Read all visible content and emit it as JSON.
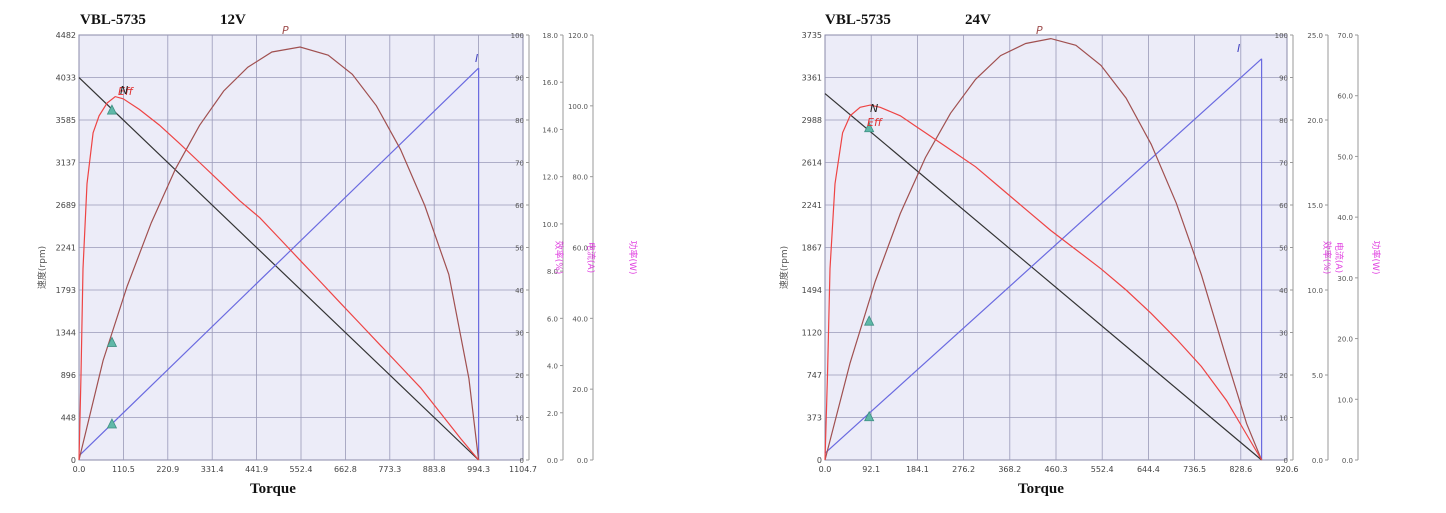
{
  "chart_data": [
    {
      "type": "line",
      "title": "VBL-5735",
      "subtitle": "12V",
      "xlabel": "Torque",
      "ylabel": "速度(rpm)",
      "right_labels": [
        "效率(%)",
        "电流(A)",
        "功率(W)"
      ],
      "xlim": [
        0,
        1104.7
      ],
      "xticks": [
        "0.0",
        "110.5",
        "220.9",
        "331.4",
        "441.9",
        "552.4",
        "662.8",
        "773.3",
        "883.8",
        "994.3",
        "1104.7"
      ],
      "ylim": [
        0,
        4482
      ],
      "yticks": [
        "0",
        "448",
        "896",
        "1344",
        "1793",
        "2241",
        "2689",
        "3137",
        "3585",
        "4033",
        "4482"
      ],
      "y2lim": [
        0,
        100
      ],
      "y2ticks": [
        "0",
        "10",
        "20",
        "30",
        "40",
        "50",
        "60",
        "70",
        "80",
        "90",
        "100"
      ],
      "y3lim": [
        0,
        18
      ],
      "y3ticks": [
        "0.0",
        "2.0",
        "4.0",
        "6.0",
        "8.0",
        "10.0",
        "12.0",
        "14.0",
        "16.0",
        "18.0"
      ],
      "y4lim": [
        0,
        120
      ],
      "y4ticks": [
        "0.0",
        "20.0",
        "40.0",
        "60.0",
        "80.0",
        "100.0",
        "120.0"
      ],
      "grid": true,
      "colors": {
        "speed": "#333333",
        "eff": "#ee4444",
        "power": "#a05050",
        "current": "#6a6ae0",
        "marker": "#5fb8a8"
      },
      "series": [
        {
          "name": "N",
          "axis": "speed",
          "x": [
            0,
            994.3
          ],
          "y": [
            4033,
            0
          ]
        },
        {
          "name": "I",
          "axis": "current",
          "x": [
            0,
            994.3
          ],
          "y": [
            0.18,
            16.6
          ]
        },
        {
          "name": "P",
          "axis": "power",
          "x": [
            0,
            60,
            120,
            180,
            240,
            300,
            360,
            420,
            480,
            550,
            620,
            680,
            740,
            800,
            860,
            920,
            970,
            994.3
          ],
          "y": [
            0,
            28.1,
            49.1,
            67.0,
            82.2,
            94.5,
            104.2,
            110.9,
            115.2,
            116.6,
            114.3,
            108.9,
            100.0,
            87.7,
            71.9,
            52.4,
            23.0,
            0
          ]
        },
        {
          "name": "Eff",
          "axis": "eff",
          "x": [
            0,
            5,
            10,
            20,
            35,
            50,
            70,
            90,
            110,
            150,
            200,
            250,
            300,
            350,
            400,
            450,
            500,
            550,
            600,
            650,
            700,
            750,
            800,
            850,
            900,
            950,
            994.3
          ],
          "y": [
            0,
            20,
            45,
            65,
            77,
            81,
            84,
            85.5,
            85,
            82.5,
            78.8,
            74.5,
            70,
            65.5,
            61,
            57,
            52,
            47,
            42,
            37,
            32,
            27,
            22,
            17,
            11,
            5,
            0
          ]
        }
      ],
      "markers": [
        {
          "series": "N",
          "x": 82,
          "y": 3690
        },
        {
          "series": "P",
          "x": 82,
          "y": 1240
        },
        {
          "series": "I",
          "x": 82,
          "y": 380
        }
      ],
      "curve_labels": [
        "Eff",
        "N",
        "P",
        "I"
      ]
    },
    {
      "type": "line",
      "title": "VBL-5735",
      "subtitle": "24V",
      "xlabel": "Torque",
      "ylabel": "速度(rpm)",
      "right_labels": [
        "效率(%)",
        "电流(A)",
        "功率(W)"
      ],
      "xlim": [
        0,
        920.6
      ],
      "xticks": [
        "0.0",
        "92.1",
        "184.1",
        "276.2",
        "368.2",
        "460.3",
        "552.4",
        "644.4",
        "736.5",
        "828.6",
        "920.6"
      ],
      "ylim": [
        0,
        3735
      ],
      "yticks": [
        "0",
        "373",
        "747",
        "1120",
        "1494",
        "1867",
        "2241",
        "2614",
        "2988",
        "3361",
        "3735"
      ],
      "y2lim": [
        0,
        100
      ],
      "y2ticks": [
        "0",
        "10",
        "20",
        "30",
        "40",
        "50",
        "60",
        "70",
        "80",
        "90",
        "100"
      ],
      "y3lim": [
        0,
        25
      ],
      "y3ticks": [
        "0.0",
        "5.0",
        "10.0",
        "15.0",
        "20.0",
        "25.0"
      ],
      "y4lim": [
        0,
        70
      ],
      "y4ticks": [
        "0.0",
        "10.0",
        "20.0",
        "30.0",
        "40.0",
        "50.0",
        "60.0",
        "70.0"
      ],
      "grid": true,
      "colors": {
        "speed": "#333333",
        "eff": "#ee4444",
        "power": "#a05050",
        "current": "#6a6ae0",
        "marker": "#5fb8a8"
      },
      "series": [
        {
          "name": "N",
          "axis": "speed",
          "x": [
            0,
            870
          ],
          "y": [
            3220,
            0
          ]
        },
        {
          "name": "I",
          "axis": "current",
          "x": [
            0,
            870
          ],
          "y": [
            0.4,
            23.6
          ]
        },
        {
          "name": "P",
          "axis": "power",
          "x": [
            0,
            50,
            100,
            150,
            200,
            250,
            300,
            350,
            400,
            450,
            500,
            550,
            600,
            650,
            700,
            750,
            800,
            840,
            870
          ],
          "y": [
            0,
            16.0,
            29.4,
            40.6,
            49.8,
            57.1,
            62.7,
            66.6,
            68.6,
            69.4,
            68.3,
            65.0,
            59.6,
            52.0,
            42.3,
            30.5,
            16.7,
            6.0,
            0
          ]
        },
        {
          "name": "Eff",
          "axis": "eff",
          "x": [
            0,
            5,
            10,
            20,
            35,
            50,
            70,
            90,
            110,
            150,
            200,
            250,
            300,
            350,
            400,
            450,
            500,
            550,
            600,
            650,
            700,
            750,
            800,
            840,
            870
          ],
          "y": [
            0,
            20,
            45,
            65,
            77,
            81,
            83,
            83.5,
            83,
            81,
            77,
            73,
            69,
            64,
            59,
            54,
            49.5,
            45,
            40,
            34.5,
            28.5,
            22,
            14,
            6,
            0
          ]
        }
      ],
      "markers": [
        {
          "series": "N",
          "x": 88,
          "y": 2920
        },
        {
          "series": "P",
          "x": 88,
          "y": 1220
        },
        {
          "series": "I",
          "x": 88,
          "y": 380
        }
      ],
      "curve_labels": [
        "Eff",
        "N",
        "P",
        "I"
      ]
    }
  ]
}
